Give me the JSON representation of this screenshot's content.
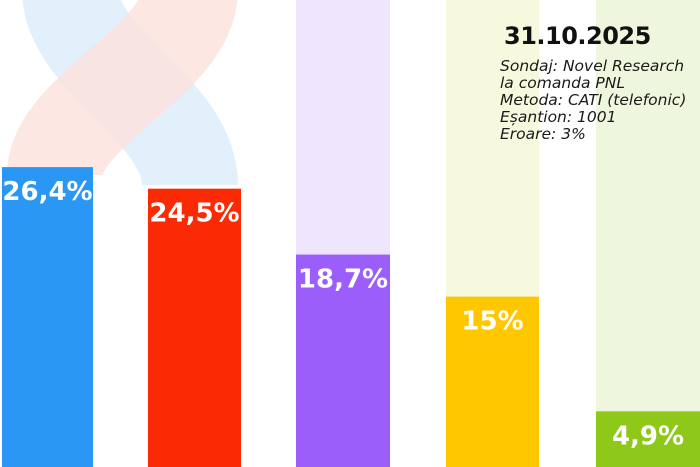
{
  "header": {
    "date": "31.10.2025",
    "lines": [
      "Sondaj: Novel Research",
      "la comanda PNL",
      "Metoda: CATI (telefonic)",
      "Eșantion: 1001",
      "Eroare: 3%"
    ]
  },
  "colors": {
    "bar1": "#2b97f5",
    "bar2": "#fa2a05",
    "bar3": "#9b5efa",
    "bar4": "#ffc700",
    "bar5": "#8ec919",
    "bar3_shade": "#efe6fd",
    "bar4_shade": "#f7f9de",
    "bar5_shade": "#eef7dd",
    "ribbon_blue": "#e2f0fc",
    "ribbon_red": "#fbe3de"
  },
  "chart_data": {
    "type": "bar",
    "values": [
      26.4,
      24.5,
      18.7,
      15,
      4.9
    ],
    "labels": [
      "26,4%",
      "24,5%",
      "18,7%",
      "15%",
      "4,9%"
    ],
    "ylim": [
      0,
      33
    ]
  }
}
